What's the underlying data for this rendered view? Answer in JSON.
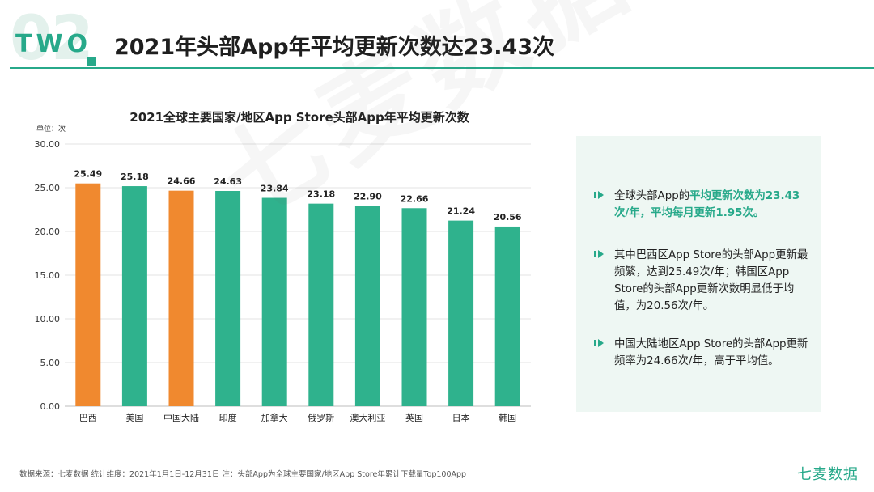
{
  "header": {
    "section_number": "02",
    "section_tag": "TWO",
    "title": "2021年头部App年平均更新次数达23.43次"
  },
  "watermark": "七麦数据",
  "chart_data": {
    "type": "bar",
    "title": "2021全球主要国家/地区App Store头部App年平均更新次数",
    "unit_label": "单位：次",
    "categories": [
      "巴西",
      "美国",
      "中国大陆",
      "印度",
      "加拿大",
      "俄罗斯",
      "澳大利亚",
      "英国",
      "日本",
      "韩国"
    ],
    "values": [
      25.49,
      25.18,
      24.66,
      24.63,
      23.84,
      23.18,
      22.9,
      22.66,
      21.24,
      20.56
    ],
    "value_labels": [
      "25.49",
      "25.18",
      "24.66",
      "24.63",
      "23.84",
      "23.18",
      "22.90",
      "22.66",
      "21.24",
      "20.56"
    ],
    "highlighted": [
      true,
      false,
      true,
      false,
      false,
      false,
      false,
      false,
      false,
      false
    ],
    "yticks": [
      "0.00",
      "5.00",
      "10.00",
      "15.00",
      "20.00",
      "25.00",
      "30.00"
    ],
    "ylim": [
      0,
      30
    ],
    "grid": true,
    "colors": {
      "highlight": "#f0892f",
      "normal": "#2fb28d",
      "grid": "#e3e3e3",
      "axis": "#bdbdbd"
    }
  },
  "panel": {
    "bullets": [
      {
        "segments": [
          {
            "text": "全球头部App的",
            "hl": false
          },
          {
            "text": "平均更新次数为23.43次/年，平均每月更新1.95次。",
            "hl": true
          }
        ]
      },
      {
        "segments": [
          {
            "text": "其中巴西区App Store的头部App更新最频繁，达到25.49次/年；韩国区App Store的头部App更新次数明显低于均值，为20.56次/年。",
            "hl": false
          }
        ]
      },
      {
        "segments": [
          {
            "text": "中国大陆地区App Store的头部App更新频率为24.66次/年，高于平均值。",
            "hl": false
          }
        ]
      }
    ]
  },
  "footer": {
    "source": "数据来源：七麦数据  统计维度：2021年1月1日-12月31日  注：头部App为全球主要国家/地区App Store年累计下载量Top100App",
    "brand": "七麦数据"
  },
  "colors": {
    "accent": "#27a98a",
    "panel_bg": "#eef7f3",
    "light_number": "#e3f1ec"
  }
}
